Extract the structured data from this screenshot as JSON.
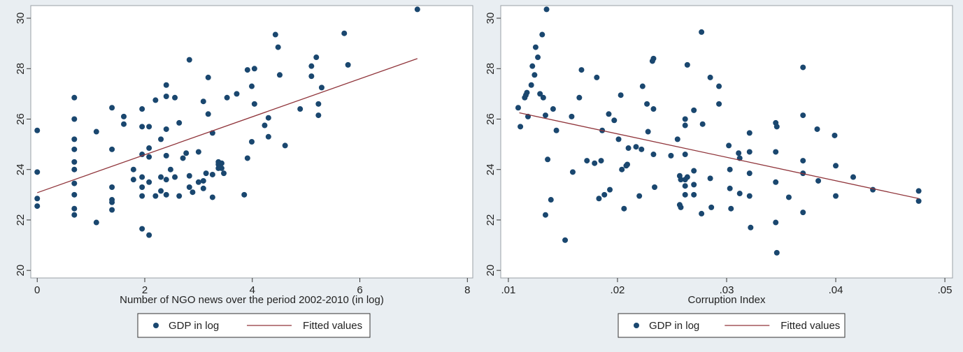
{
  "chart_data": [
    {
      "type": "scatter",
      "title": "",
      "xlabel": "Number of NGO news over the period 2002-2010 (in log)",
      "ylabel": "",
      "xlim": [
        0,
        8
      ],
      "ylim": [
        20,
        30
      ],
      "x_ticks": [
        "0",
        "2",
        "4",
        "6",
        "8"
      ],
      "y_ticks": [
        "20",
        "22",
        "24",
        "26",
        "28",
        "30"
      ],
      "legend": [
        "GDP in log",
        "Fitted values"
      ],
      "legend_placement": "bottom-center",
      "grid": false,
      "marker_color": "#1a476f",
      "fit_color": "#90353b",
      "series": [
        {
          "name": "GDP in log",
          "points": [
            [
              0,
              25.55
            ],
            [
              0,
              23.9
            ],
            [
              0,
              22.85
            ],
            [
              0,
              22.55
            ],
            [
              0.69,
              26.85
            ],
            [
              0.69,
              26.0
            ],
            [
              0.69,
              25.2
            ],
            [
              0.69,
              24.8
            ],
            [
              0.69,
              24.3
            ],
            [
              0.69,
              24.0
            ],
            [
              0.69,
              23.45
            ],
            [
              0.69,
              23.0
            ],
            [
              0.69,
              22.45
            ],
            [
              0.69,
              22.2
            ],
            [
              1.1,
              25.5
            ],
            [
              1.1,
              21.9
            ],
            [
              1.39,
              26.45
            ],
            [
              1.39,
              24.8
            ],
            [
              1.39,
              23.3
            ],
            [
              1.39,
              22.8
            ],
            [
              1.39,
              22.7
            ],
            [
              1.39,
              22.4
            ],
            [
              1.61,
              26.1
            ],
            [
              1.61,
              25.8
            ],
            [
              1.79,
              24.0
            ],
            [
              1.79,
              23.6
            ],
            [
              1.95,
              26.4
            ],
            [
              1.95,
              25.7
            ],
            [
              1.95,
              24.6
            ],
            [
              1.95,
              23.7
            ],
            [
              1.95,
              23.3
            ],
            [
              1.95,
              22.95
            ],
            [
              1.95,
              21.65
            ],
            [
              2.08,
              25.7
            ],
            [
              2.08,
              24.85
            ],
            [
              2.08,
              24.5
            ],
            [
              2.08,
              23.5
            ],
            [
              2.08,
              21.4
            ],
            [
              2.2,
              26.75
            ],
            [
              2.2,
              22.95
            ],
            [
              2.3,
              25.2
            ],
            [
              2.3,
              23.7
            ],
            [
              2.3,
              23.15
            ],
            [
              2.4,
              27.35
            ],
            [
              2.4,
              26.9
            ],
            [
              2.4,
              25.6
            ],
            [
              2.4,
              24.55
            ],
            [
              2.4,
              23.6
            ],
            [
              2.4,
              23.0
            ],
            [
              2.48,
              24.0
            ],
            [
              2.56,
              26.85
            ],
            [
              2.56,
              23.7
            ],
            [
              2.64,
              25.85
            ],
            [
              2.64,
              22.95
            ],
            [
              2.71,
              24.45
            ],
            [
              2.77,
              24.65
            ],
            [
              2.83,
              28.35
            ],
            [
              2.83,
              23.75
            ],
            [
              2.83,
              23.3
            ],
            [
              2.89,
              23.1
            ],
            [
              3.0,
              24.7
            ],
            [
              3.0,
              23.5
            ],
            [
              3.09,
              26.7
            ],
            [
              3.09,
              23.55
            ],
            [
              3.09,
              23.25
            ],
            [
              3.14,
              23.85
            ],
            [
              3.18,
              27.65
            ],
            [
              3.18,
              26.2
            ],
            [
              3.26,
              25.45
            ],
            [
              3.26,
              23.8
            ],
            [
              3.26,
              22.9
            ],
            [
              3.37,
              24.3
            ],
            [
              3.37,
              24.2
            ],
            [
              3.37,
              24.05
            ],
            [
              3.43,
              24.25
            ],
            [
              3.43,
              24.05
            ],
            [
              3.47,
              23.85
            ],
            [
              3.53,
              26.85
            ],
            [
              3.71,
              27.0
            ],
            [
              3.85,
              23.0
            ],
            [
              3.91,
              27.95
            ],
            [
              3.91,
              24.45
            ],
            [
              3.99,
              27.3
            ],
            [
              3.99,
              25.1
            ],
            [
              4.04,
              28.0
            ],
            [
              4.04,
              26.6
            ],
            [
              4.23,
              25.75
            ],
            [
              4.3,
              26.05
            ],
            [
              4.3,
              25.3
            ],
            [
              4.43,
              29.35
            ],
            [
              4.48,
              28.85
            ],
            [
              4.51,
              27.75
            ],
            [
              4.61,
              24.95
            ],
            [
              4.89,
              26.4
            ],
            [
              5.1,
              28.1
            ],
            [
              5.1,
              27.7
            ],
            [
              5.19,
              28.45
            ],
            [
              5.23,
              26.6
            ],
            [
              5.23,
              26.15
            ],
            [
              5.29,
              27.25
            ],
            [
              5.71,
              29.4
            ],
            [
              5.78,
              28.15
            ],
            [
              7.07,
              30.35
            ]
          ]
        },
        {
          "name": "Fitted values",
          "line": [
            [
              0,
              23.08
            ],
            [
              7.07,
              28.4
            ]
          ]
        }
      ]
    },
    {
      "type": "scatter",
      "title": "",
      "xlabel": "Corruption Index",
      "ylabel": "",
      "xlim": [
        0.01,
        0.05
      ],
      "ylim": [
        20,
        30
      ],
      "x_ticks": [
        ".01",
        ".02",
        ".03",
        ".04",
        ".05"
      ],
      "y_ticks": [
        "20",
        "22",
        "24",
        "26",
        "28",
        "30"
      ],
      "legend": [
        "GDP in log",
        "Fitted values"
      ],
      "legend_placement": "bottom-center",
      "grid": false,
      "marker_color": "#1a476f",
      "fit_color": "#90353b",
      "series": [
        {
          "name": "GDP in log",
          "points": [
            [
              0.0109,
              26.45
            ],
            [
              0.0111,
              25.7
            ],
            [
              0.0115,
              26.85
            ],
            [
              0.0116,
              26.95
            ],
            [
              0.0117,
              27.05
            ],
            [
              0.0118,
              26.1
            ],
            [
              0.0121,
              27.35
            ],
            [
              0.0122,
              28.1
            ],
            [
              0.0124,
              27.75
            ],
            [
              0.0125,
              28.85
            ],
            [
              0.0127,
              28.45
            ],
            [
              0.0129,
              27.0
            ],
            [
              0.0131,
              29.35
            ],
            [
              0.0132,
              26.85
            ],
            [
              0.0134,
              26.15
            ],
            [
              0.0134,
              22.2
            ],
            [
              0.0135,
              30.35
            ],
            [
              0.0136,
              24.4
            ],
            [
              0.0139,
              22.8
            ],
            [
              0.0141,
              26.4
            ],
            [
              0.0144,
              25.55
            ],
            [
              0.0152,
              21.2
            ],
            [
              0.0158,
              26.1
            ],
            [
              0.0159,
              23.9
            ],
            [
              0.0165,
              26.85
            ],
            [
              0.0167,
              27.95
            ],
            [
              0.0172,
              24.35
            ],
            [
              0.0179,
              24.25
            ],
            [
              0.0181,
              27.65
            ],
            [
              0.0183,
              22.85
            ],
            [
              0.0185,
              24.35
            ],
            [
              0.0186,
              25.55
            ],
            [
              0.0188,
              23.0
            ],
            [
              0.0192,
              26.2
            ],
            [
              0.0193,
              23.2
            ],
            [
              0.0197,
              25.95
            ],
            [
              0.0201,
              25.2
            ],
            [
              0.0203,
              26.95
            ],
            [
              0.0204,
              24.0
            ],
            [
              0.0206,
              22.45
            ],
            [
              0.0208,
              24.15
            ],
            [
              0.0209,
              24.2
            ],
            [
              0.021,
              24.85
            ],
            [
              0.0217,
              24.9
            ],
            [
              0.022,
              22.95
            ],
            [
              0.0222,
              24.8
            ],
            [
              0.0223,
              27.3
            ],
            [
              0.0227,
              26.6
            ],
            [
              0.0228,
              25.5
            ],
            [
              0.0232,
              28.3
            ],
            [
              0.0233,
              28.4
            ],
            [
              0.0233,
              26.4
            ],
            [
              0.0233,
              24.6
            ],
            [
              0.0234,
              23.3
            ],
            [
              0.0249,
              24.55
            ],
            [
              0.0255,
              25.2
            ],
            [
              0.0257,
              23.75
            ],
            [
              0.0257,
              22.6
            ],
            [
              0.0258,
              23.6
            ],
            [
              0.0258,
              22.5
            ],
            [
              0.0262,
              26.0
            ],
            [
              0.0262,
              25.75
            ],
            [
              0.0262,
              24.6
            ],
            [
              0.0262,
              23.6
            ],
            [
              0.0262,
              23.35
            ],
            [
              0.0262,
              23.0
            ],
            [
              0.0264,
              28.15
            ],
            [
              0.0264,
              23.7
            ],
            [
              0.027,
              26.35
            ],
            [
              0.027,
              23.95
            ],
            [
              0.027,
              23.4
            ],
            [
              0.027,
              23.0
            ],
            [
              0.0277,
              29.45
            ],
            [
              0.0277,
              22.25
            ],
            [
              0.0278,
              25.8
            ],
            [
              0.0285,
              27.65
            ],
            [
              0.0285,
              23.65
            ],
            [
              0.0286,
              22.5
            ],
            [
              0.0293,
              27.3
            ],
            [
              0.0293,
              26.6
            ],
            [
              0.0302,
              24.95
            ],
            [
              0.0303,
              24.0
            ],
            [
              0.0303,
              23.25
            ],
            [
              0.0304,
              22.45
            ],
            [
              0.0311,
              24.65
            ],
            [
              0.0312,
              24.45
            ],
            [
              0.0312,
              23.05
            ],
            [
              0.0321,
              24.7
            ],
            [
              0.0321,
              23.85
            ],
            [
              0.0321,
              22.95
            ],
            [
              0.0322,
              21.7
            ],
            [
              0.0321,
              25.45
            ],
            [
              0.0345,
              25.85
            ],
            [
              0.0346,
              25.7
            ],
            [
              0.0345,
              24.7
            ],
            [
              0.0345,
              23.5
            ],
            [
              0.0345,
              21.9
            ],
            [
              0.0346,
              20.7
            ],
            [
              0.0357,
              22.9
            ],
            [
              0.037,
              28.05
            ],
            [
              0.037,
              26.15
            ],
            [
              0.037,
              24.35
            ],
            [
              0.037,
              23.85
            ],
            [
              0.037,
              22.3
            ],
            [
              0.0383,
              25.6
            ],
            [
              0.0384,
              23.55
            ],
            [
              0.0399,
              25.35
            ],
            [
              0.04,
              24.15
            ],
            [
              0.04,
              22.95
            ],
            [
              0.0416,
              23.7
            ],
            [
              0.0434,
              23.2
            ],
            [
              0.0476,
              23.15
            ],
            [
              0.0476,
              22.75
            ]
          ]
        },
        {
          "name": "Fitted values",
          "line": [
            [
              0.011,
              26.25
            ],
            [
              0.0476,
              22.85
            ]
          ]
        }
      ]
    }
  ]
}
